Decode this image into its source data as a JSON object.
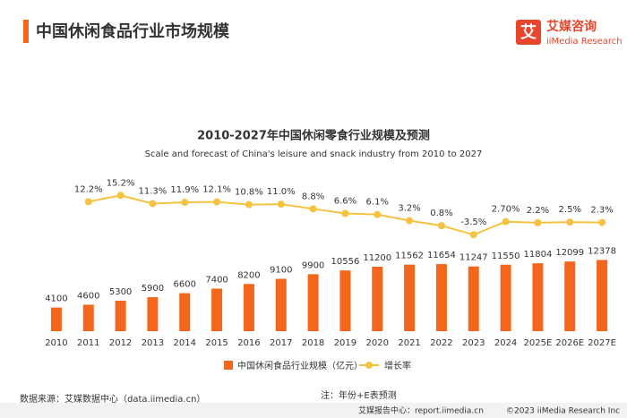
{
  "header": {
    "title": "中国休闲食品行业市场规模",
    "logo_cn": "艾媒咨询",
    "logo_en": "iiMedia Research",
    "logo_mark": "艾"
  },
  "chart_data": {
    "type": "bar-line",
    "title": "2010-2027年中国休闲零食行业规模及预测",
    "subtitle": "Scale and forecast of China's leisure and snack industry from 2010 to 2027",
    "categories": [
      "2010",
      "2011",
      "2012",
      "2013",
      "2014",
      "2015",
      "2016",
      "2017",
      "2018",
      "2019",
      "2020",
      "2021",
      "2022",
      "2023",
      "2024",
      "2025E",
      "2026E",
      "2027E"
    ],
    "series": [
      {
        "name": "中国休闲食品行业规模（亿元）",
        "type": "bar",
        "color": "#f4661b",
        "values": [
          4100,
          4600,
          5300,
          5900,
          6600,
          7400,
          8200,
          9100,
          9900,
          10556,
          11200,
          11562,
          11654,
          11247,
          11550,
          11804,
          12099,
          12378
        ]
      },
      {
        "name": "增长率",
        "type": "line",
        "axis": "y2",
        "color": "#f5c242",
        "values": [
          null,
          12.2,
          15.2,
          11.3,
          11.9,
          12.1,
          10.8,
          11.0,
          8.8,
          6.6,
          6.1,
          3.2,
          0.8,
          -3.5,
          2.7,
          2.2,
          2.5,
          2.3
        ],
        "value_labels": [
          null,
          "12.2%",
          "15.2%",
          "11.3%",
          "11.9%",
          "12.1%",
          "10.8%",
          "11.0%",
          "8.8%",
          "6.6%",
          "6.1%",
          "3.2%",
          "0.8%",
          "-3.5%",
          "2.70%",
          "2.2%",
          "2.5%",
          "2.3%"
        ]
      }
    ],
    "ylim": [
      0,
      14000
    ],
    "y2lim": [
      -20,
      40
    ],
    "legend": "bottom"
  },
  "footer": {
    "source": "数据来源：艾媒数据中心（data.iimedia.cn）",
    "note": "注：年份+E表预测",
    "report": "艾媒报告中心：report.iimedia.cn",
    "copyright": "©2023  iiMedia Research Inc"
  }
}
